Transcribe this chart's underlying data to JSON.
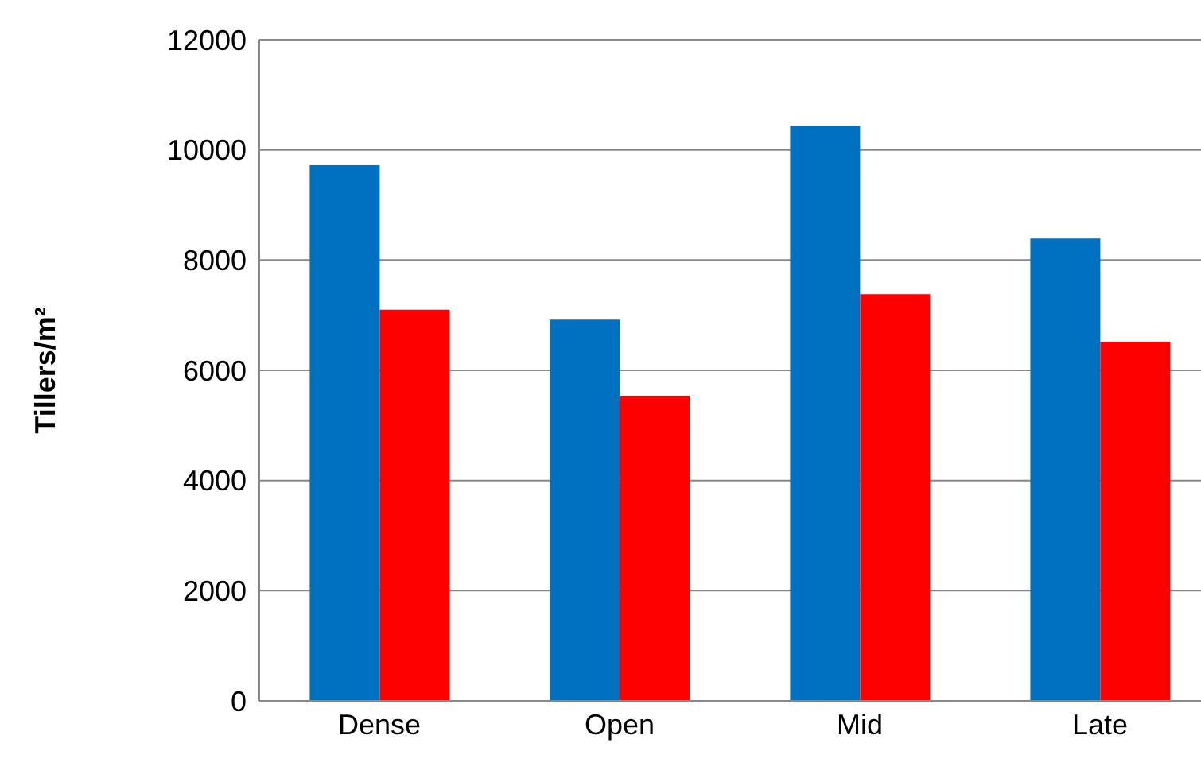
{
  "chart_data": {
    "type": "bar",
    "ylabel": "Tillers/m²",
    "categories": [
      "Dense",
      "Open",
      "Mid",
      "Late"
    ],
    "series": [
      {
        "color": "#0070c0",
        "values": [
          9720,
          6920,
          10440,
          8390
        ]
      },
      {
        "color": "#ff0000",
        "values": [
          7100,
          5540,
          7380,
          6520
        ]
      }
    ],
    "ylim": [
      0,
      12000
    ],
    "yticks": [
      0,
      2000,
      4000,
      6000,
      8000,
      10000,
      12000
    ],
    "grid": "y"
  }
}
